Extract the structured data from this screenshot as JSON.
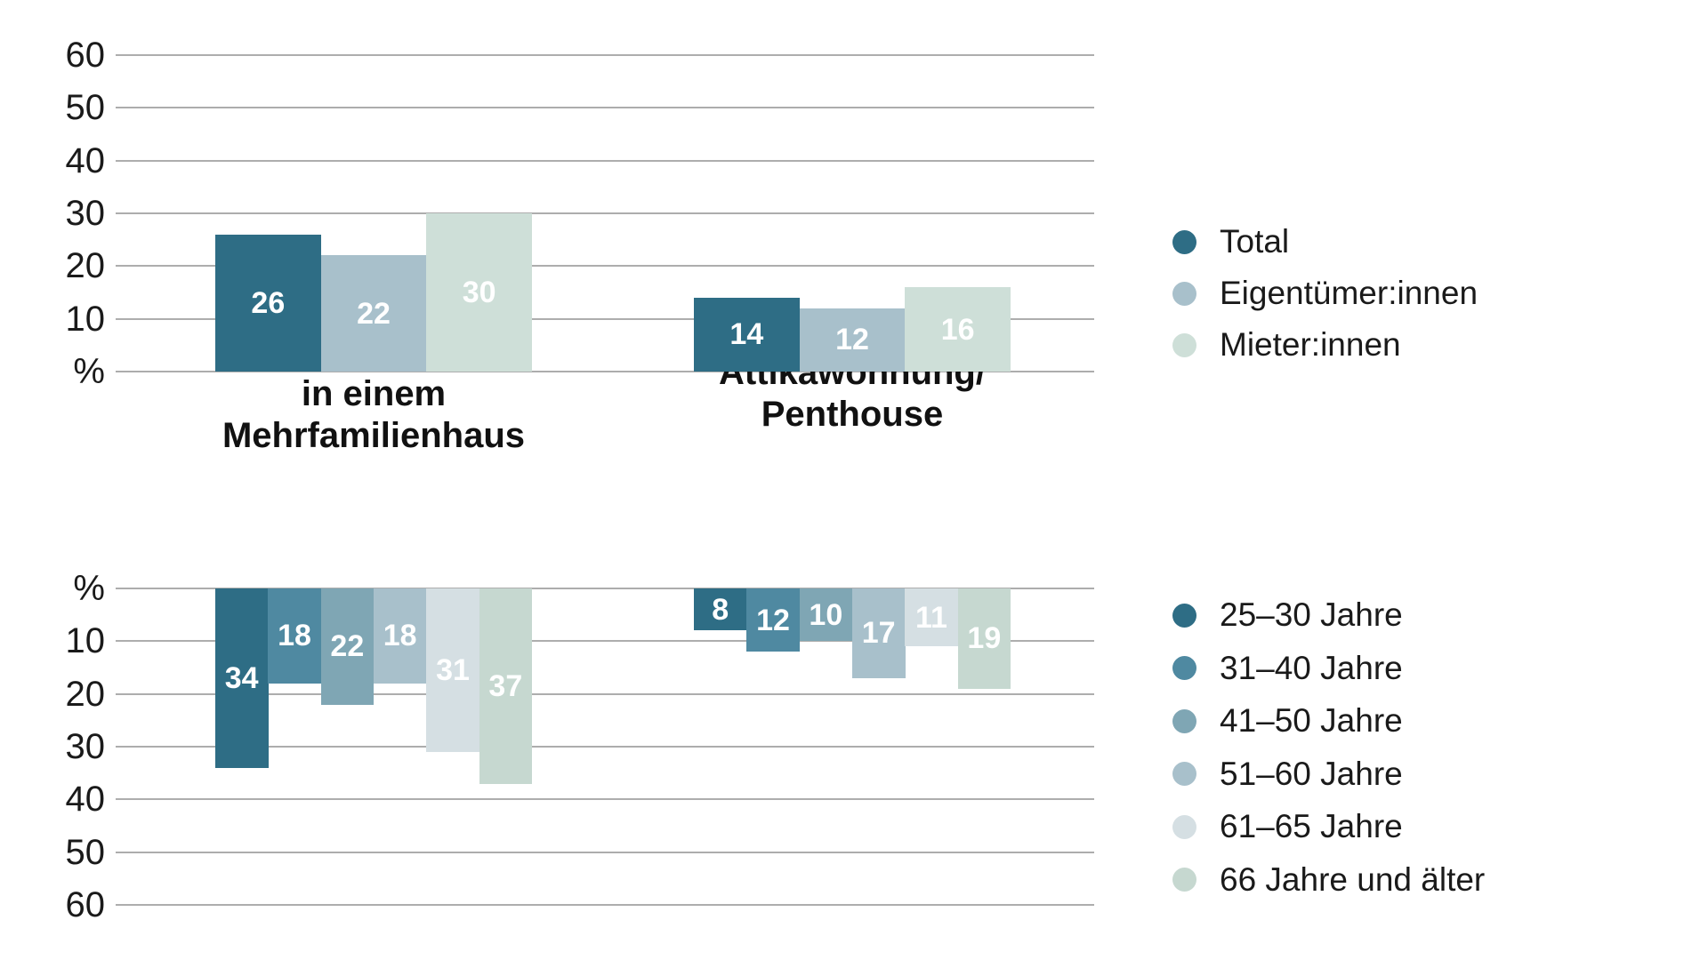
{
  "chart_data": {
    "type": "bar",
    "unit_label": "%",
    "grid": true,
    "legend_position": "right",
    "categories": [
      "Wohnung\nin einem\nMehrfamilienhaus",
      "Attikawohnung/\nPenthouse"
    ],
    "axis": {
      "ylim": [
        0,
        60
      ],
      "ytick_step": 10,
      "tick_labels_top_panel": [
        "60",
        "50",
        "40",
        "30",
        "20",
        "10",
        "%"
      ],
      "tick_labels_bottom_panel": [
        "%",
        "10",
        "20",
        "30",
        "40",
        "50",
        "60"
      ]
    },
    "panels": [
      {
        "orientation": "up",
        "series": [
          {
            "name": "Total",
            "color": "#2e6d85",
            "values": [
              26,
              14
            ]
          },
          {
            "name": "Eigentümer:innen",
            "color": "#a8c0cb",
            "values": [
              22,
              12
            ]
          },
          {
            "name": "Mieter:innen",
            "color": "#cedfd8",
            "values": [
              30,
              16
            ]
          }
        ]
      },
      {
        "orientation": "down",
        "series": [
          {
            "name": "25–30 Jahre",
            "color": "#2e6d85",
            "values": [
              34,
              8
            ]
          },
          {
            "name": "31–40 Jahre",
            "color": "#4f89a1",
            "values": [
              18,
              12
            ]
          },
          {
            "name": "41–50 Jahre",
            "color": "#7fa6b4",
            "values": [
              22,
              10
            ]
          },
          {
            "name": "51–60 Jahre",
            "color": "#a8c0cb",
            "values": [
              18,
              17
            ]
          },
          {
            "name": "61–65 Jahre",
            "color": "#d5dfe3",
            "values": [
              31,
              11
            ]
          },
          {
            "name": "66 Jahre und älter",
            "color": "#c6d8d0",
            "values": [
              37,
              19
            ]
          }
        ]
      }
    ],
    "colors": {
      "gridline": "#adadad",
      "axis_text": "#1a1a1a",
      "bar_label_text": "#ffffff"
    }
  }
}
